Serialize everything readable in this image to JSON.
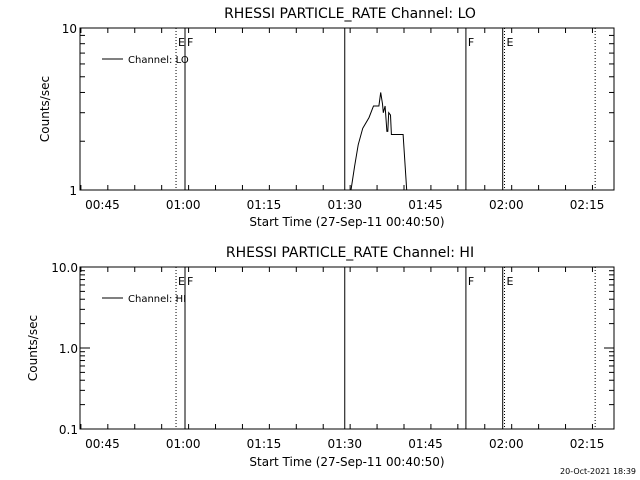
{
  "chart_data": [
    {
      "type": "line",
      "title": "RHESSI PARTICLE_RATE Channel: LO",
      "xlabel": "Start Time (27-Sep-11 00:40:50)",
      "ylabel": "Counts/sec",
      "y_scale": "log",
      "ylim": [
        1,
        10
      ],
      "y_ticks": [
        "1",
        "10"
      ],
      "x_axis": "time",
      "xlim": [
        "00:40:50",
        "02:20:00"
      ],
      "x_ticks": [
        "00:45",
        "01:00",
        "01:15",
        "01:30",
        "01:45",
        "02:00",
        "02:15"
      ],
      "legend": {
        "placement": "top-left",
        "entries": [
          "Channel: LO"
        ]
      },
      "series": [
        {
          "name": "Channel: LO",
          "x": [
            "01:31:10",
            "01:31:50",
            "01:32:30",
            "01:33:20",
            "01:34:30",
            "01:35:20",
            "01:35:40",
            "01:36:00",
            "01:36:20",
            "01:36:40",
            "01:37:00",
            "01:37:10",
            "01:37:30",
            "01:37:50",
            "01:38:00",
            "01:38:10",
            "01:38:30",
            "01:38:40",
            "01:39:10",
            "01:39:50",
            "01:40:50",
            "01:41:30"
          ],
          "y": [
            1.0,
            1.4,
            1.9,
            2.4,
            2.8,
            3.3,
            3.3,
            3.3,
            3.3,
            4.0,
            3.4,
            3.0,
            3.3,
            2.3,
            2.3,
            3.0,
            2.9,
            2.2,
            2.2,
            2.2,
            2.2,
            1.0
          ]
        }
      ],
      "markers": [
        {
          "time": "00:58:40",
          "style": "dotted",
          "label": "E"
        },
        {
          "time": "01:00:20",
          "style": "solid",
          "label": "F"
        },
        {
          "time": "01:30:00",
          "style": "solid",
          "label": ""
        },
        {
          "time": "01:52:30",
          "style": "solid",
          "label": "F"
        },
        {
          "time": "01:59:20",
          "style": "solid",
          "label": ""
        },
        {
          "time": "01:59:40",
          "style": "dotted",
          "label": "E"
        },
        {
          "time": "02:16:30",
          "style": "dotted",
          "label": ""
        }
      ]
    },
    {
      "type": "line",
      "title": "RHESSI PARTICLE_RATE Channel: HI",
      "xlabel": "Start Time (27-Sep-11 00:40:50)",
      "ylabel": "Counts/sec",
      "y_scale": "log",
      "ylim": [
        0.1,
        10
      ],
      "y_ticks": [
        "0.1",
        "1.0",
        "10.0"
      ],
      "x_axis": "time",
      "xlim": [
        "00:40:50",
        "02:20:00"
      ],
      "x_ticks": [
        "00:45",
        "01:00",
        "01:15",
        "01:30",
        "01:45",
        "02:00",
        "02:15"
      ],
      "legend": {
        "placement": "top-left",
        "entries": [
          "Channel: HI"
        ]
      },
      "series": [
        {
          "name": "Channel: HI",
          "x": [],
          "y": []
        }
      ],
      "markers": [
        {
          "time": "00:58:40",
          "style": "dotted",
          "label": "E"
        },
        {
          "time": "01:00:20",
          "style": "solid",
          "label": "F"
        },
        {
          "time": "01:30:00",
          "style": "solid",
          "label": ""
        },
        {
          "time": "01:52:30",
          "style": "solid",
          "label": "F"
        },
        {
          "time": "01:59:20",
          "style": "solid",
          "label": ""
        },
        {
          "time": "01:59:40",
          "style": "dotted",
          "label": "E"
        },
        {
          "time": "02:16:30",
          "style": "dotted",
          "label": ""
        }
      ]
    }
  ],
  "footer": {
    "timestamp": "20-Oct-2021 18:39"
  }
}
